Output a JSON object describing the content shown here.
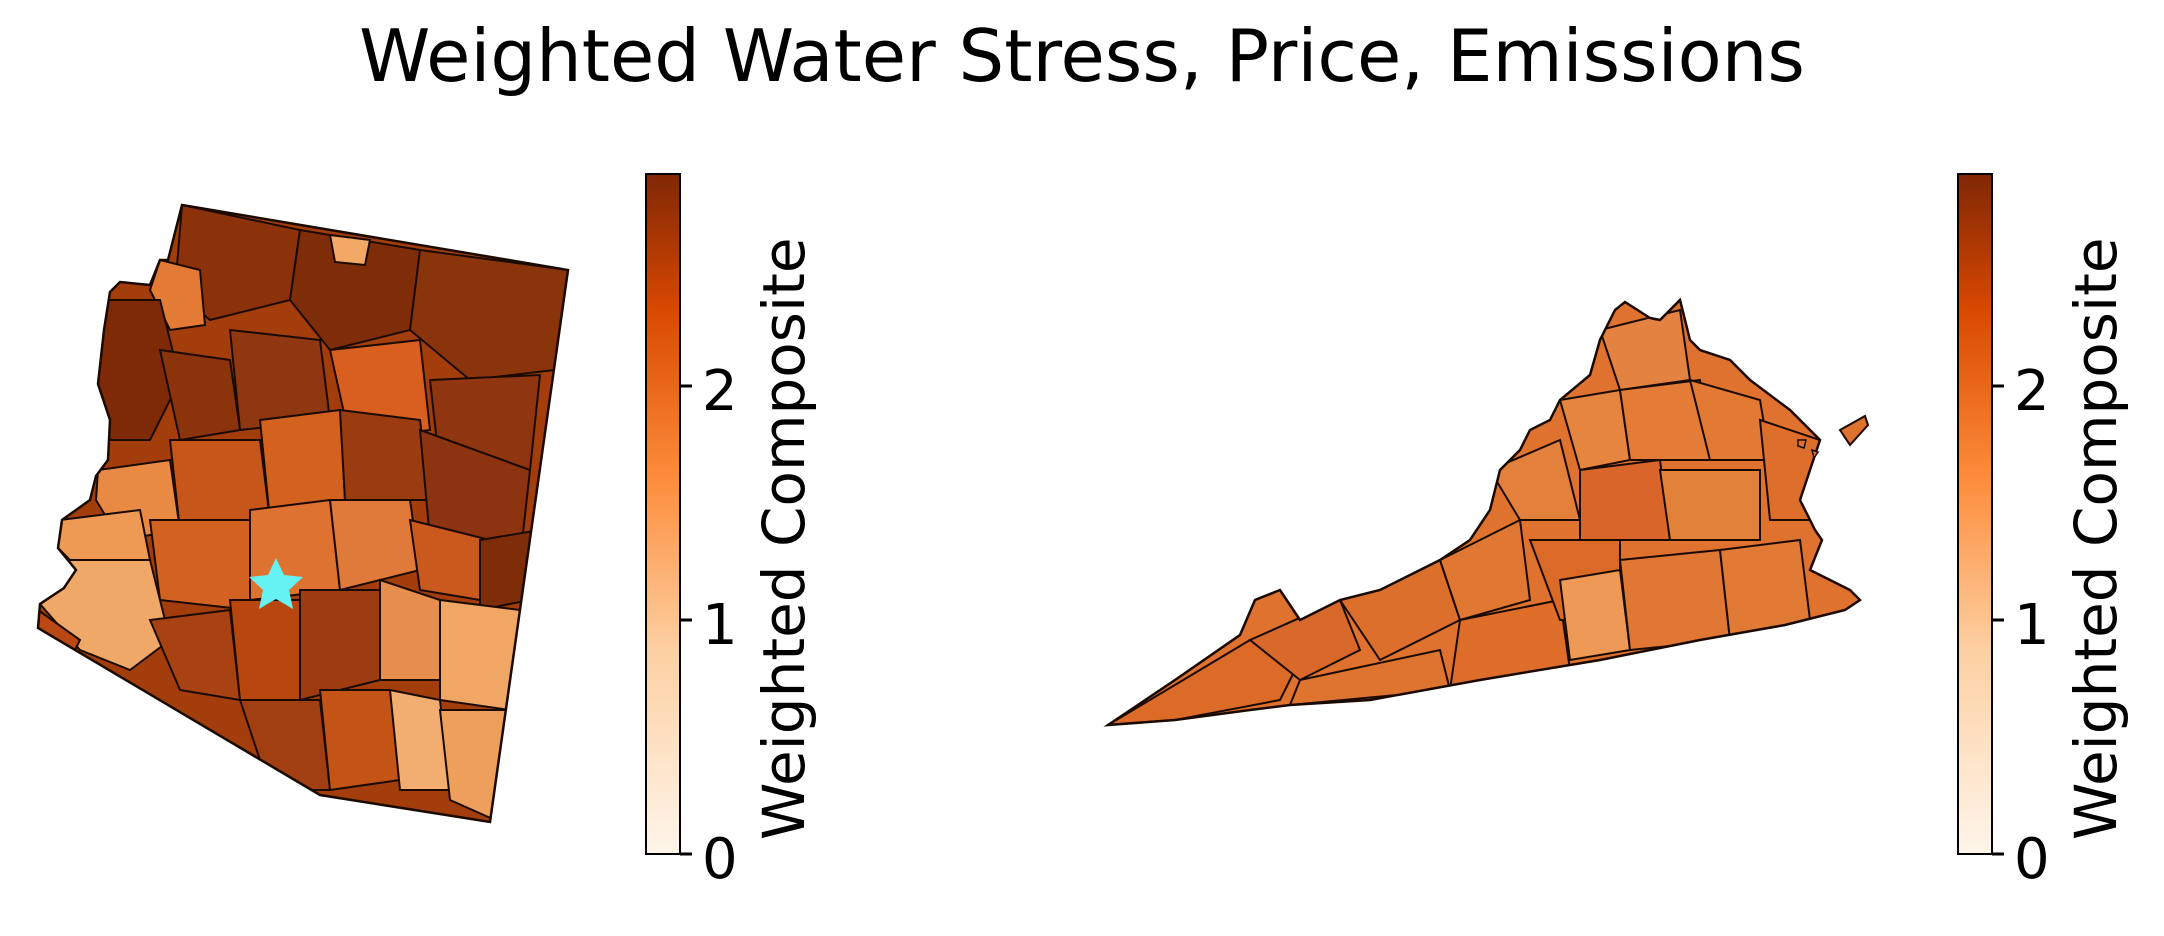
{
  "title": "Weighted Water Stress, Price, Emissions",
  "colormap": {
    "name": "Oranges",
    "stops": [
      "#fff5eb",
      "#fdd0a2",
      "#fd8d3c",
      "#d94801",
      "#7f2704"
    ],
    "min": 0,
    "max": 2.9
  },
  "maps": [
    {
      "name": "Arizona",
      "colorbar": {
        "label": "Weighted Composite",
        "ticks": [
          {
            "value": 0,
            "label": "0"
          },
          {
            "value": 1,
            "label": "1"
          },
          {
            "value": 2,
            "label": "2"
          }
        ]
      },
      "marker": {
        "type": "star",
        "color": "#66f2f2"
      }
    },
    {
      "name": "Virginia",
      "colorbar": {
        "label": "Weighted Composite",
        "ticks": [
          {
            "value": 0,
            "label": "0"
          },
          {
            "value": 1,
            "label": "1"
          },
          {
            "value": 2,
            "label": "2"
          }
        ]
      }
    }
  ]
}
